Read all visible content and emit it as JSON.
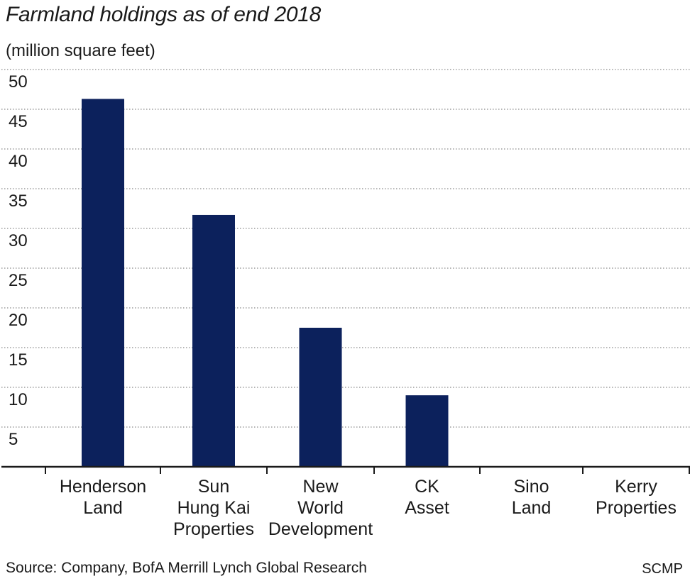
{
  "chart_data": {
    "type": "bar",
    "title": "Farmland holdings as of end 2018",
    "subtitle": "(million square feet)",
    "xlabel": "",
    "ylabel": "",
    "categories": [
      [
        "Henderson",
        "Land"
      ],
      [
        "Sun",
        "Hung Kai",
        "Properties"
      ],
      [
        "New",
        "World",
        "Development"
      ],
      [
        "CK",
        "Asset"
      ],
      [
        "Sino",
        "Land"
      ],
      [
        "Kerry",
        "Properties"
      ]
    ],
    "values": [
      46.3,
      31.7,
      17.5,
      9.0,
      0,
      0
    ],
    "ylim": [
      0,
      50
    ],
    "yticks": [
      5,
      10,
      15,
      20,
      25,
      30,
      35,
      40,
      45,
      50
    ],
    "grid": true,
    "legend": "none",
    "colors": {
      "bar": "#0c215c",
      "grid": "#8a8a8a",
      "axis": "#1a1a1a"
    }
  },
  "footer": {
    "source": "Source: Company, BofA Merrill Lynch Global Research",
    "credit": "SCMP"
  }
}
